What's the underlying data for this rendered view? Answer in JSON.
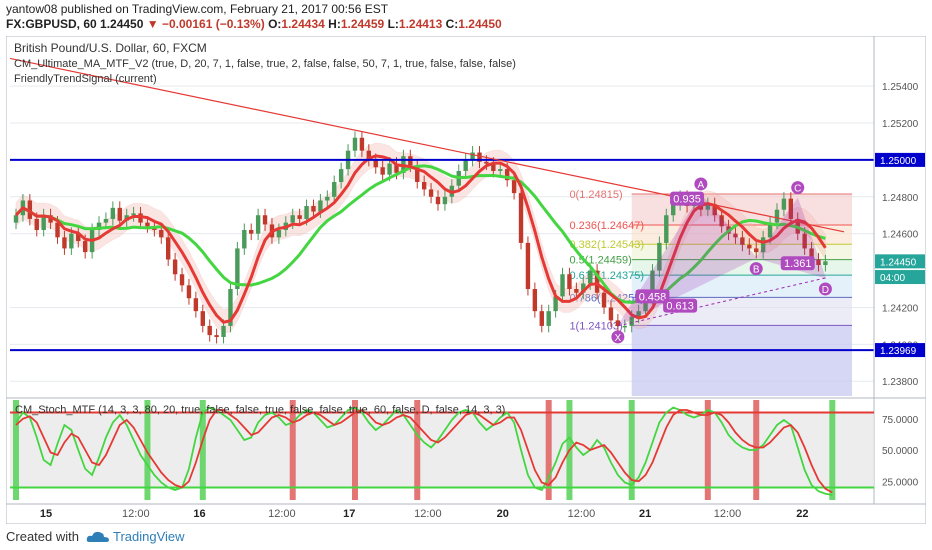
{
  "header": {
    "author": "yantow08",
    "published_text": "published on TradingView.com, February 21, 2017 00:56 EST",
    "symbol": "FX:GBPUSD, 60",
    "last": "1.24450",
    "change": "▼ −0.00161 (−0.13%)",
    "o_label": "O:",
    "o_value": "1.24434",
    "h_label": "H:",
    "h_value": "1.24459",
    "l_label": "L:",
    "l_value": "1.24413",
    "c_label": "C:",
    "c_value": "1.24450"
  },
  "legend": [
    "British Pound/U.S. Dollar, 60, FXCM",
    "CM_Ultimate_MA_MTF_V2 (true, D, 20, 7, 1, false, true, 2, false, false, 50, 7, 1, true, false, false, false)",
    "FriendlyTrendSignal (current)"
  ],
  "stoch_legend": "CM_Stoch_MTF (14, 3, 3, 80, 20, true, false, false, true, false, false, true, 60, false, D, false, 14, 3, 3)",
  "footer": {
    "created": "Created with",
    "brand": "TradingView"
  },
  "colors": {
    "up": "#26a69a",
    "down": "#ef5350",
    "upBody": "#4a9a5a",
    "downBody": "#c0392b",
    "ma_fast": "#e53935",
    "ma_slow": "#43d641",
    "level": "#0000cc",
    "trend": "#e53935",
    "pattern": "#9c27b0",
    "bull_bar": "#5fd35f",
    "bear_bar": "#e06666"
  },
  "chart_data": [
    {
      "type": "candlestick",
      "title": "British Pound/U.S. Dollar, 60, FXCM",
      "ylim": [
        1.2372,
        1.2565
      ],
      "y_ticks": [
        "1.25400",
        "1.25200",
        "1.25000",
        "1.24800",
        "1.24600",
        "1.24200",
        "1.24000",
        "1.23800"
      ],
      "x_ticks": [
        "15",
        "12:00",
        "16",
        "12:00",
        "17",
        "12:00",
        "20",
        "12:00",
        "21",
        "12:00",
        "22"
      ],
      "price_labels": [
        {
          "text": "1.25000",
          "value": 1.25,
          "color": "#0000cc"
        },
        {
          "text": "1.24450",
          "value": 1.2445,
          "color": "#26a69a"
        },
        {
          "text": "04:00",
          "value": 1.2443,
          "color": "#26a69a"
        },
        {
          "text": "1.23969",
          "value": 1.23969,
          "color": "#0000cc"
        }
      ],
      "horizontal_levels": [
        1.25,
        1.23969
      ],
      "fibonacci": [
        {
          "ratio": "0",
          "price": "1.24815",
          "value": 1.24815
        },
        {
          "ratio": "0.236",
          "price": "1.24647",
          "value": 1.24647
        },
        {
          "ratio": "0.382",
          "price": "1.24543",
          "value": 1.24543
        },
        {
          "ratio": "0.5",
          "price": "1.24459",
          "value": 1.24459
        },
        {
          "ratio": "0.618",
          "price": "1.24375",
          "value": 1.24375
        },
        {
          "ratio": "0.786",
          "price": "1.24255",
          "value": 1.24255
        },
        {
          "ratio": "1",
          "price": "1.24103",
          "value": 1.24103
        }
      ],
      "harmonic_pattern": {
        "points": [
          {
            "label": "X",
            "value": 1.241
          },
          {
            "label": "A",
            "value": 1.2481
          },
          {
            "label": "B",
            "value": 1.2447
          },
          {
            "label": "C",
            "value": 1.2479
          },
          {
            "label": "D",
            "value": 1.2436
          }
        ],
        "ratios": [
          "0.935",
          "0.458",
          "0.613",
          "1.361"
        ]
      },
      "close_series": [
        1.247,
        1.2478,
        1.2468,
        1.2462,
        1.247,
        1.2466,
        1.2458,
        1.2452,
        1.246,
        1.2456,
        1.245,
        1.2462,
        1.2466,
        1.2468,
        1.2474,
        1.2467,
        1.247,
        1.2471,
        1.2466,
        1.2464,
        1.2462,
        1.2458,
        1.2446,
        1.2438,
        1.2432,
        1.2425,
        1.2418,
        1.241,
        1.2405,
        1.2404,
        1.241,
        1.243,
        1.2452,
        1.2462,
        1.246,
        1.247,
        1.2465,
        1.2458,
        1.2462,
        1.2466,
        1.247,
        1.2468,
        1.2475,
        1.2472,
        1.2478,
        1.248,
        1.2488,
        1.2495,
        1.2505,
        1.2512,
        1.2505,
        1.25,
        1.2496,
        1.2492,
        1.2498,
        1.2493,
        1.2502,
        1.2497,
        1.2488,
        1.2484,
        1.248,
        1.2476,
        1.248,
        1.2486,
        1.2494,
        1.25,
        1.2504,
        1.2499,
        1.2498,
        1.2494,
        1.2495,
        1.2489,
        1.2482,
        1.2455,
        1.243,
        1.2418,
        1.241,
        1.2418,
        1.2426,
        1.2438,
        1.243,
        1.2428,
        1.2433,
        1.244,
        1.2428,
        1.242,
        1.2413,
        1.241,
        1.241,
        1.2415,
        1.2418,
        1.2425,
        1.244,
        1.2455,
        1.247,
        1.2476,
        1.248,
        1.2475,
        1.2478,
        1.2473,
        1.2476,
        1.247,
        1.2464,
        1.246,
        1.2458,
        1.2454,
        1.2452,
        1.245,
        1.2458,
        1.2466,
        1.2473,
        1.2479,
        1.2468,
        1.246,
        1.2452,
        1.2446,
        1.2443,
        1.2445
      ],
      "ma_fast_label": "CM_Ultimate_MA_MTF_V2"
    },
    {
      "type": "line",
      "title": "CM_Stoch_MTF",
      "ylim": [
        10,
        90
      ],
      "y_ticks": [
        "75.0000",
        "50.0000",
        "25.0000"
      ],
      "upper_band": 80,
      "lower_band": 20,
      "series": [
        {
          "name": "K",
          "color": "#43d641",
          "values": [
            72,
            80,
            76,
            60,
            42,
            38,
            55,
            70,
            66,
            50,
            35,
            30,
            44,
            60,
            72,
            78,
            70,
            58,
            46,
            38,
            30,
            24,
            20,
            18,
            20,
            35,
            60,
            80,
            84,
            82,
            78,
            74,
            66,
            58,
            60,
            72,
            78,
            80,
            76,
            70,
            72,
            78,
            82,
            80,
            74,
            68,
            70,
            76,
            82,
            84,
            80,
            72,
            66,
            70,
            76,
            82,
            78,
            70,
            62,
            56,
            52,
            58,
            66,
            74,
            80,
            82,
            80,
            72,
            66,
            70,
            76,
            80,
            72,
            50,
            30,
            20,
            18,
            28,
            40,
            55,
            60,
            52,
            46,
            50,
            58,
            52,
            40,
            30,
            24,
            22,
            28,
            40,
            56,
            72,
            80,
            84,
            82,
            78,
            76,
            78,
            82,
            80,
            72,
            62,
            56,
            52,
            50,
            50,
            54,
            62,
            70,
            74,
            70,
            52,
            34,
            22,
            17,
            15,
            14
          ]
        },
        {
          "name": "D",
          "color": "#e53935",
          "values": [
            70,
            75,
            77,
            72,
            60,
            48,
            46,
            56,
            63,
            60,
            50,
            40,
            38,
            46,
            58,
            70,
            74,
            68,
            58,
            48,
            40,
            32,
            26,
            22,
            20,
            25,
            40,
            58,
            74,
            82,
            82,
            78,
            74,
            68,
            62,
            64,
            70,
            76,
            78,
            76,
            72,
            74,
            78,
            80,
            78,
            74,
            70,
            72,
            76,
            80,
            82,
            78,
            72,
            70,
            72,
            76,
            78,
            76,
            70,
            64,
            58,
            56,
            60,
            66,
            72,
            78,
            80,
            78,
            74,
            70,
            72,
            76,
            76,
            66,
            50,
            34,
            24,
            22,
            28,
            40,
            50,
            56,
            54,
            50,
            52,
            54,
            48,
            40,
            32,
            26,
            25,
            30,
            40,
            54,
            68,
            78,
            82,
            82,
            80,
            78,
            78,
            80,
            78,
            72,
            64,
            58,
            54,
            52,
            52,
            56,
            62,
            68,
            70,
            64,
            52,
            38,
            26,
            19,
            16
          ]
        }
      ],
      "signal_bars": [
        {
          "kind": "bull",
          "index": 0
        },
        {
          "kind": "bull",
          "index": 19
        },
        {
          "kind": "bull",
          "index": 27
        },
        {
          "kind": "bear",
          "index": 40
        },
        {
          "kind": "bear",
          "index": 49
        },
        {
          "kind": "bear",
          "index": 58
        },
        {
          "kind": "bear",
          "index": 77
        },
        {
          "kind": "bull",
          "index": 80
        },
        {
          "kind": "bull",
          "index": 89
        },
        {
          "kind": "bear",
          "index": 100
        },
        {
          "kind": "bear",
          "index": 107
        },
        {
          "kind": "bull",
          "index": 118
        }
      ]
    }
  ]
}
